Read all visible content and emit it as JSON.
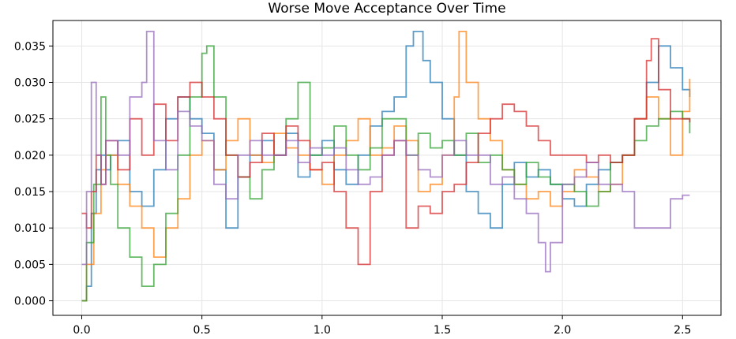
{
  "chart_data": {
    "type": "line",
    "title": "Worse Move Acceptance Over Time",
    "xlabel": "",
    "ylabel": "",
    "xlim": [
      -0.12,
      2.66
    ],
    "ylim": [
      -0.002,
      0.0385
    ],
    "x_ticks": [
      0.0,
      0.5,
      1.0,
      1.5,
      2.0,
      2.5
    ],
    "x_tick_labels": [
      "0.0",
      "0.5",
      "1.0",
      "1.5",
      "2.0",
      "2.5"
    ],
    "y_ticks": [
      0.0,
      0.005,
      0.01,
      0.015,
      0.02,
      0.025,
      0.03,
      0.035
    ],
    "y_tick_labels": [
      "0.000",
      "0.005",
      "0.010",
      "0.015",
      "0.020",
      "0.025",
      "0.030",
      "0.035"
    ],
    "grid": true,
    "legend": "none",
    "line_style": "step",
    "colors": [
      "#1f77b4",
      "#ff7f0e",
      "#2ca02c",
      "#d62728",
      "#9467bd"
    ],
    "series": [
      {
        "x": [
          0.0,
          0.02,
          0.04,
          0.06,
          0.08,
          0.1,
          0.12,
          0.15,
          0.2,
          0.25,
          0.3,
          0.35,
          0.4,
          0.45,
          0.5,
          0.55,
          0.6,
          0.65,
          0.7,
          0.75,
          0.8,
          0.85,
          0.9,
          0.95,
          1.0,
          1.05,
          1.1,
          1.15,
          1.2,
          1.25,
          1.3,
          1.35,
          1.38,
          1.42,
          1.45,
          1.5,
          1.55,
          1.6,
          1.65,
          1.7,
          1.75,
          1.8,
          1.85,
          1.9,
          1.95,
          2.0,
          2.05,
          2.1,
          2.15,
          2.2,
          2.25,
          2.3,
          2.35,
          2.4,
          2.45,
          2.5,
          2.53
        ],
        "y": [
          0.0,
          0.002,
          0.012,
          0.018,
          0.02,
          0.018,
          0.02,
          0.022,
          0.015,
          0.013,
          0.018,
          0.025,
          0.028,
          0.025,
          0.023,
          0.018,
          0.01,
          0.017,
          0.02,
          0.022,
          0.02,
          0.023,
          0.017,
          0.02,
          0.022,
          0.018,
          0.016,
          0.02,
          0.024,
          0.026,
          0.028,
          0.035,
          0.037,
          0.033,
          0.03,
          0.025,
          0.02,
          0.015,
          0.012,
          0.01,
          0.016,
          0.019,
          0.017,
          0.018,
          0.016,
          0.014,
          0.013,
          0.016,
          0.018,
          0.019,
          0.02,
          0.025,
          0.03,
          0.035,
          0.032,
          0.029,
          0.028
        ]
      },
      {
        "x": [
          0.0,
          0.02,
          0.05,
          0.08,
          0.1,
          0.15,
          0.2,
          0.25,
          0.3,
          0.35,
          0.4,
          0.45,
          0.5,
          0.55,
          0.6,
          0.65,
          0.7,
          0.75,
          0.8,
          0.85,
          0.9,
          0.95,
          1.0,
          1.05,
          1.1,
          1.15,
          1.2,
          1.25,
          1.3,
          1.35,
          1.4,
          1.45,
          1.5,
          1.55,
          1.57,
          1.6,
          1.65,
          1.7,
          1.75,
          1.8,
          1.85,
          1.9,
          1.95,
          2.0,
          2.05,
          2.1,
          2.15,
          2.2,
          2.25,
          2.3,
          2.35,
          2.4,
          2.45,
          2.5,
          2.53
        ],
        "y": [
          0.0,
          0.005,
          0.012,
          0.018,
          0.02,
          0.016,
          0.013,
          0.01,
          0.006,
          0.01,
          0.014,
          0.02,
          0.022,
          0.018,
          0.022,
          0.025,
          0.02,
          0.019,
          0.023,
          0.021,
          0.02,
          0.018,
          0.016,
          0.02,
          0.022,
          0.025,
          0.02,
          0.021,
          0.024,
          0.022,
          0.015,
          0.016,
          0.02,
          0.028,
          0.037,
          0.03,
          0.025,
          0.022,
          0.018,
          0.016,
          0.014,
          0.015,
          0.013,
          0.015,
          0.018,
          0.017,
          0.015,
          0.016,
          0.02,
          0.025,
          0.028,
          0.025,
          0.02,
          0.026,
          0.0305
        ]
      },
      {
        "x": [
          0.0,
          0.02,
          0.05,
          0.08,
          0.1,
          0.12,
          0.15,
          0.2,
          0.25,
          0.3,
          0.35,
          0.4,
          0.45,
          0.5,
          0.52,
          0.55,
          0.6,
          0.65,
          0.7,
          0.75,
          0.8,
          0.85,
          0.9,
          0.95,
          1.0,
          1.05,
          1.1,
          1.15,
          1.2,
          1.25,
          1.3,
          1.35,
          1.4,
          1.45,
          1.5,
          1.55,
          1.6,
          1.65,
          1.7,
          1.75,
          1.8,
          1.85,
          1.9,
          1.95,
          2.0,
          2.05,
          2.1,
          2.15,
          2.2,
          2.25,
          2.3,
          2.35,
          2.4,
          2.45,
          2.5,
          2.53
        ],
        "y": [
          0.0,
          0.008,
          0.016,
          0.028,
          0.02,
          0.016,
          0.01,
          0.006,
          0.002,
          0.005,
          0.012,
          0.02,
          0.028,
          0.034,
          0.035,
          0.028,
          0.02,
          0.017,
          0.014,
          0.018,
          0.02,
          0.025,
          0.03,
          0.02,
          0.021,
          0.024,
          0.02,
          0.018,
          0.021,
          0.025,
          0.025,
          0.02,
          0.023,
          0.021,
          0.022,
          0.02,
          0.023,
          0.019,
          0.02,
          0.018,
          0.016,
          0.019,
          0.017,
          0.016,
          0.016,
          0.015,
          0.013,
          0.015,
          0.019,
          0.02,
          0.022,
          0.024,
          0.025,
          0.026,
          0.025,
          0.023
        ]
      },
      {
        "x": [
          0.0,
          0.02,
          0.04,
          0.06,
          0.08,
          0.1,
          0.15,
          0.2,
          0.25,
          0.3,
          0.35,
          0.4,
          0.45,
          0.5,
          0.55,
          0.6,
          0.65,
          0.7,
          0.75,
          0.8,
          0.85,
          0.9,
          0.95,
          1.0,
          1.05,
          1.1,
          1.15,
          1.2,
          1.25,
          1.3,
          1.35,
          1.4,
          1.45,
          1.5,
          1.55,
          1.6,
          1.65,
          1.7,
          1.75,
          1.8,
          1.85,
          1.9,
          1.95,
          2.0,
          2.05,
          2.1,
          2.15,
          2.2,
          2.25,
          2.3,
          2.35,
          2.37,
          2.4,
          2.45,
          2.5,
          2.53
        ],
        "y": [
          0.012,
          0.01,
          0.015,
          0.02,
          0.016,
          0.022,
          0.018,
          0.025,
          0.02,
          0.027,
          0.022,
          0.028,
          0.03,
          0.028,
          0.025,
          0.02,
          0.017,
          0.019,
          0.023,
          0.02,
          0.024,
          0.022,
          0.018,
          0.019,
          0.015,
          0.01,
          0.005,
          0.015,
          0.02,
          0.022,
          0.01,
          0.013,
          0.012,
          0.015,
          0.016,
          0.019,
          0.023,
          0.025,
          0.027,
          0.026,
          0.024,
          0.022,
          0.02,
          0.02,
          0.02,
          0.019,
          0.02,
          0.019,
          0.02,
          0.025,
          0.033,
          0.036,
          0.029,
          0.025,
          0.025,
          0.0245
        ]
      },
      {
        "x": [
          0.0,
          0.02,
          0.04,
          0.06,
          0.08,
          0.1,
          0.15,
          0.2,
          0.25,
          0.27,
          0.3,
          0.35,
          0.4,
          0.45,
          0.5,
          0.55,
          0.6,
          0.65,
          0.7,
          0.75,
          0.8,
          0.85,
          0.9,
          0.95,
          1.0,
          1.05,
          1.1,
          1.15,
          1.2,
          1.25,
          1.3,
          1.35,
          1.4,
          1.45,
          1.5,
          1.55,
          1.6,
          1.65,
          1.7,
          1.75,
          1.8,
          1.85,
          1.9,
          1.93,
          1.95,
          2.0,
          2.05,
          2.1,
          2.15,
          2.2,
          2.25,
          2.3,
          2.35,
          2.4,
          2.45,
          2.5,
          2.53
        ],
        "y": [
          0.005,
          0.015,
          0.03,
          0.02,
          0.016,
          0.022,
          0.02,
          0.028,
          0.03,
          0.037,
          0.022,
          0.018,
          0.026,
          0.024,
          0.022,
          0.016,
          0.014,
          0.02,
          0.022,
          0.02,
          0.02,
          0.022,
          0.019,
          0.021,
          0.02,
          0.021,
          0.018,
          0.016,
          0.017,
          0.02,
          0.022,
          0.02,
          0.018,
          0.017,
          0.02,
          0.022,
          0.02,
          0.02,
          0.016,
          0.017,
          0.014,
          0.012,
          0.008,
          0.004,
          0.008,
          0.016,
          0.017,
          0.019,
          0.016,
          0.016,
          0.015,
          0.01,
          0.01,
          0.01,
          0.014,
          0.0145,
          0.0145
        ]
      }
    ]
  }
}
